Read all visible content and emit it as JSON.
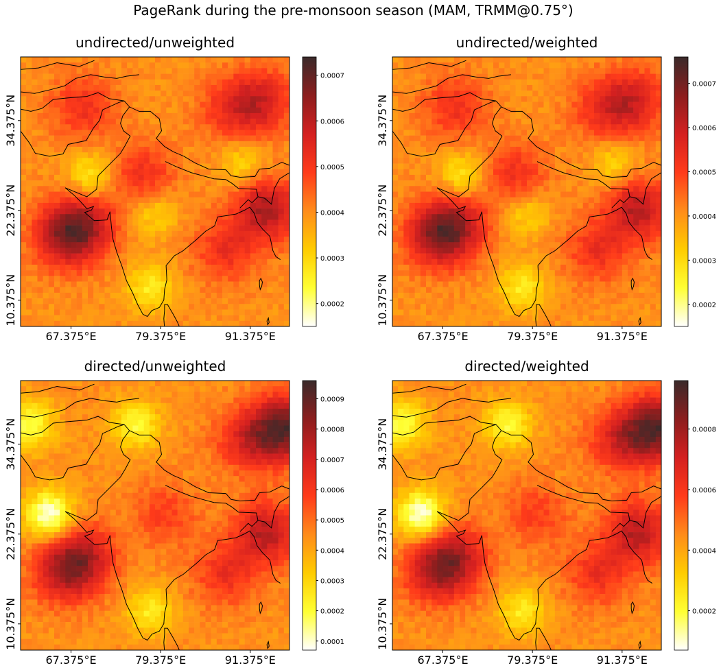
{
  "suptitle": "PageRank during the pre-monsoon season (MAM, TRMM@0.75°)",
  "colormap": {
    "name": "hot_r",
    "stops": [
      "#ffffff",
      "#ffff33",
      "#ffcc00",
      "#ff8c1a",
      "#ff3b1a",
      "#d42020",
      "#8c1e1e",
      "#3a2a2a"
    ]
  },
  "chart_data": [
    {
      "type": "heatmap",
      "title": "undirected/unweighted",
      "xticks": [
        "67.375°E",
        "79.375°E",
        "91.375°E"
      ],
      "yticks": [
        "34.375°N",
        "22.375°N",
        "10.375°N"
      ],
      "colorbar": {
        "range": [
          0.00015,
          0.00074
        ],
        "ticks": [
          "0.0002",
          "0.0003",
          "0.0004",
          "0.0005",
          "0.0006",
          "0.0007"
        ],
        "tick_values": [
          0.0002,
          0.0003,
          0.0004,
          0.0005,
          0.0006,
          0.0007
        ]
      },
      "hotspots": [
        {
          "lon": 66.5,
          "lat": 19.0,
          "v": 0.72
        },
        {
          "lon": 69.5,
          "lat": 20.5,
          "v": 0.62
        },
        {
          "lon": 93.5,
          "lat": 22.5,
          "v": 0.73
        },
        {
          "lon": 88.0,
          "lat": 17.0,
          "v": 0.55
        },
        {
          "lon": 93.0,
          "lat": 37.0,
          "v": 0.6
        },
        {
          "lon": 89.0,
          "lat": 36.0,
          "v": 0.55
        },
        {
          "lon": 69.0,
          "lat": 36.0,
          "v": 0.55
        },
        {
          "lon": 77.0,
          "lat": 27.0,
          "v": 0.55
        }
      ],
      "coldspots": [
        {
          "lon": 70.0,
          "lat": 27.0,
          "v": 0.2
        },
        {
          "lon": 78.5,
          "lat": 22.0,
          "v": 0.25
        },
        {
          "lon": 90.5,
          "lat": 28.5,
          "v": 0.25
        },
        {
          "lon": 78.0,
          "lat": 12.0,
          "v": 0.2
        }
      ]
    },
    {
      "type": "heatmap",
      "title": "undirected/weighted",
      "xticks": [
        "67.375°E",
        "79.375°E",
        "91.375°E"
      ],
      "yticks": [
        "34.375°N",
        "22.375°N",
        "10.375°N"
      ],
      "colorbar": {
        "range": [
          0.00015,
          0.00076
        ],
        "ticks": [
          "0.0002",
          "0.0003",
          "0.0004",
          "0.0005",
          "0.0006",
          "0.0007"
        ],
        "tick_values": [
          0.0002,
          0.0003,
          0.0004,
          0.0005,
          0.0006,
          0.0007
        ]
      },
      "hotspots": [
        {
          "lon": 66.5,
          "lat": 19.0,
          "v": 0.72
        },
        {
          "lon": 69.5,
          "lat": 20.5,
          "v": 0.62
        },
        {
          "lon": 93.5,
          "lat": 22.5,
          "v": 0.7
        },
        {
          "lon": 88.0,
          "lat": 17.0,
          "v": 0.55
        },
        {
          "lon": 93.0,
          "lat": 37.0,
          "v": 0.6
        },
        {
          "lon": 89.0,
          "lat": 36.0,
          "v": 0.55
        },
        {
          "lon": 69.0,
          "lat": 36.0,
          "v": 0.55
        },
        {
          "lon": 77.0,
          "lat": 27.0,
          "v": 0.55
        }
      ],
      "coldspots": [
        {
          "lon": 70.0,
          "lat": 27.0,
          "v": 0.2
        },
        {
          "lon": 78.5,
          "lat": 22.0,
          "v": 0.25
        },
        {
          "lon": 90.5,
          "lat": 28.5,
          "v": 0.25
        },
        {
          "lon": 78.0,
          "lat": 12.0,
          "v": 0.2
        }
      ]
    },
    {
      "type": "heatmap",
      "title": "directed/unweighted",
      "xticks": [
        "67.375°E",
        "79.375°E",
        "91.375°E"
      ],
      "yticks": [
        "34.375°N",
        "22.375°N",
        "10.375°N"
      ],
      "colorbar": {
        "range": [
          7e-05,
          0.00096
        ],
        "ticks": [
          "0.0001",
          "0.0002",
          "0.0003",
          "0.0004",
          "0.0005",
          "0.0006",
          "0.0007",
          "0.0008",
          "0.0009"
        ],
        "tick_values": [
          0.0001,
          0.0002,
          0.0003,
          0.0004,
          0.0005,
          0.0006,
          0.0007,
          0.0008,
          0.0009
        ]
      },
      "hotspots": [
        {
          "lon": 96.0,
          "lat": 36.5,
          "v": 0.85
        },
        {
          "lon": 91.0,
          "lat": 35.0,
          "v": 0.6
        },
        {
          "lon": 66.5,
          "lat": 17.5,
          "v": 0.7
        },
        {
          "lon": 69.5,
          "lat": 19.5,
          "v": 0.6
        },
        {
          "lon": 93.5,
          "lat": 22.5,
          "v": 0.7
        },
        {
          "lon": 88.0,
          "lat": 17.0,
          "v": 0.55
        },
        {
          "lon": 80.0,
          "lat": 25.0,
          "v": 0.5
        }
      ],
      "coldspots": [
        {
          "lon": 64.5,
          "lat": 25.0,
          "v": 0.0
        },
        {
          "lon": 62.0,
          "lat": 37.0,
          "v": 0.12
        },
        {
          "lon": 76.0,
          "lat": 37.0,
          "v": 0.15
        },
        {
          "lon": 78.0,
          "lat": 12.0,
          "v": 0.2
        }
      ]
    },
    {
      "type": "heatmap",
      "title": "directed/weighted",
      "xticks": [
        "67.375°E",
        "79.375°E",
        "91.375°E"
      ],
      "yticks": [
        "34.375°N",
        "22.375°N",
        "10.375°N"
      ],
      "colorbar": {
        "range": [
          7e-05,
          0.00096
        ],
        "ticks": [
          "0.0002",
          "0.0004",
          "0.0006",
          "0.0008"
        ],
        "tick_values": [
          0.0002,
          0.0004,
          0.0006,
          0.0008
        ]
      },
      "hotspots": [
        {
          "lon": 96.0,
          "lat": 36.5,
          "v": 0.85
        },
        {
          "lon": 91.0,
          "lat": 35.0,
          "v": 0.6
        },
        {
          "lon": 66.5,
          "lat": 17.5,
          "v": 0.7
        },
        {
          "lon": 69.5,
          "lat": 19.5,
          "v": 0.6
        },
        {
          "lon": 93.5,
          "lat": 22.5,
          "v": 0.7
        },
        {
          "lon": 88.0,
          "lat": 17.0,
          "v": 0.55
        },
        {
          "lon": 80.0,
          "lat": 25.0,
          "v": 0.5
        }
      ],
      "coldspots": [
        {
          "lon": 64.5,
          "lat": 25.0,
          "v": 0.0
        },
        {
          "lon": 62.0,
          "lat": 37.0,
          "v": 0.12
        },
        {
          "lon": 76.0,
          "lat": 37.0,
          "v": 0.15
        },
        {
          "lon": 78.0,
          "lat": 12.0,
          "v": 0.2
        }
      ]
    }
  ]
}
